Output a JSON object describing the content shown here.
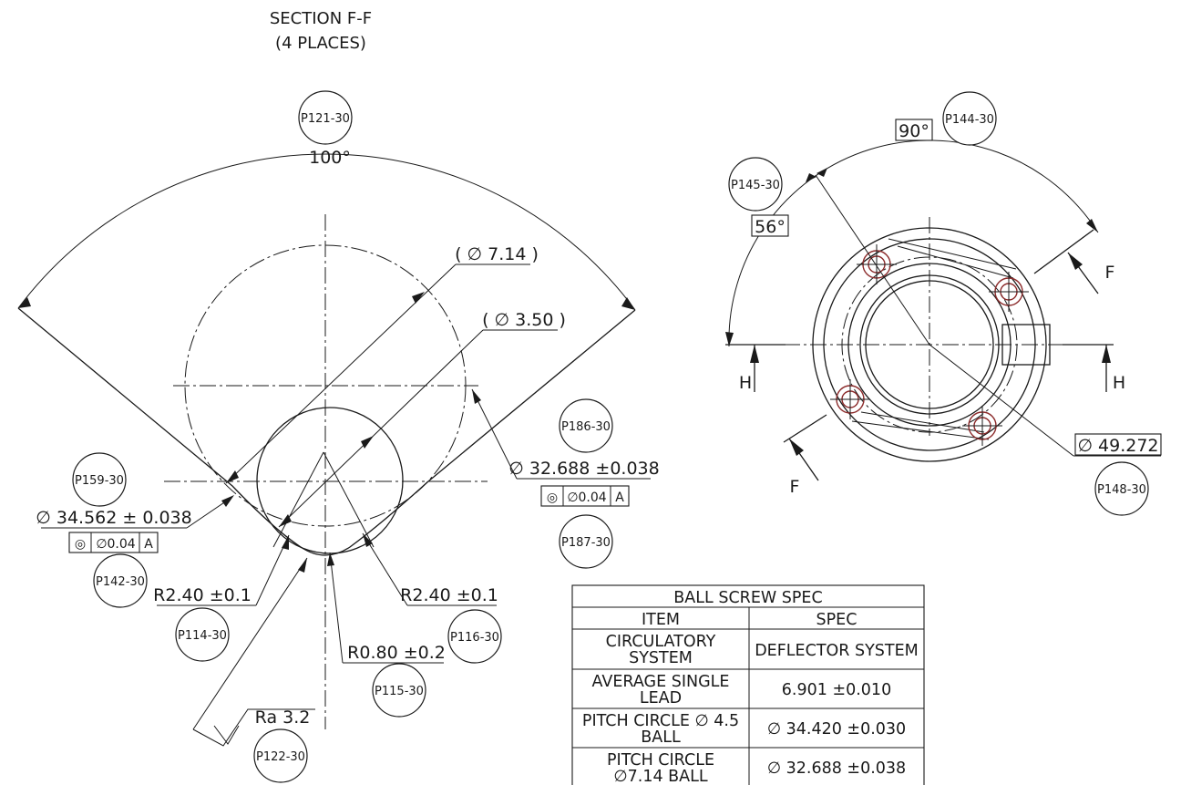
{
  "section": {
    "title_line1": "SECTION F-F",
    "title_line2": "(4 PLACES)"
  },
  "left_view": {
    "angle": "100°",
    "dim_dia_714": "( ∅ 7.14 )",
    "dim_dia_350": "( ∅ 3.50 )",
    "dim_dia_32688": "∅ 32.688 ±0.038",
    "fcf_32688": {
      "symbol": "◎",
      "tolerance": "∅0.04",
      "datum": "A"
    },
    "dim_dia_34562": "∅ 34.562 ± 0.038",
    "fcf_34562": {
      "symbol": "◎",
      "tolerance": "∅0.04",
      "datum": "A"
    },
    "dim_r240_left": "R2.40 ±0.1",
    "dim_r240_right": "R2.40 ±0.1",
    "dim_r080": "R0.80 ±0.2",
    "surface_finish": "Ra  3.2"
  },
  "right_view": {
    "angle_90": "90°",
    "angle_56": "56°",
    "dim_dia_49272": "∅ 49.272",
    "section_labels": {
      "f_top": "F",
      "f_bottom": "F",
      "h_left": "H",
      "h_right": "H"
    }
  },
  "balloons": {
    "p121": "P121-30",
    "p144": "P144-30",
    "p145": "P145-30",
    "p186": "P186-30",
    "p159": "P159-30",
    "p187": "P187-30",
    "p142": "P142-30",
    "p114": "P114-30",
    "p116": "P116-30",
    "p115": "P115-30",
    "p122": "P122-30",
    "p148": "P148-30"
  },
  "spec_table": {
    "title": "BALL SCREW SPEC",
    "headers": [
      "ITEM",
      "SPEC"
    ],
    "rows": [
      {
        "item_l1": "CIRCULATORY",
        "item_l2": "SYSTEM",
        "spec": "DEFLECTOR SYSTEM"
      },
      {
        "item_l1": "AVERAGE SINGLE",
        "item_l2": "LEAD",
        "spec": "6.901 ±0.010"
      },
      {
        "item_l1": "PITCH CIRCLE  ∅ 4.5",
        "item_l2": "BALL",
        "spec": "∅ 34.420 ±0.030"
      },
      {
        "item_l1": "PITCH CIRCLE",
        "item_l2": "∅7.14 BALL",
        "spec": "∅ 32.688 ±0.038"
      }
    ]
  }
}
